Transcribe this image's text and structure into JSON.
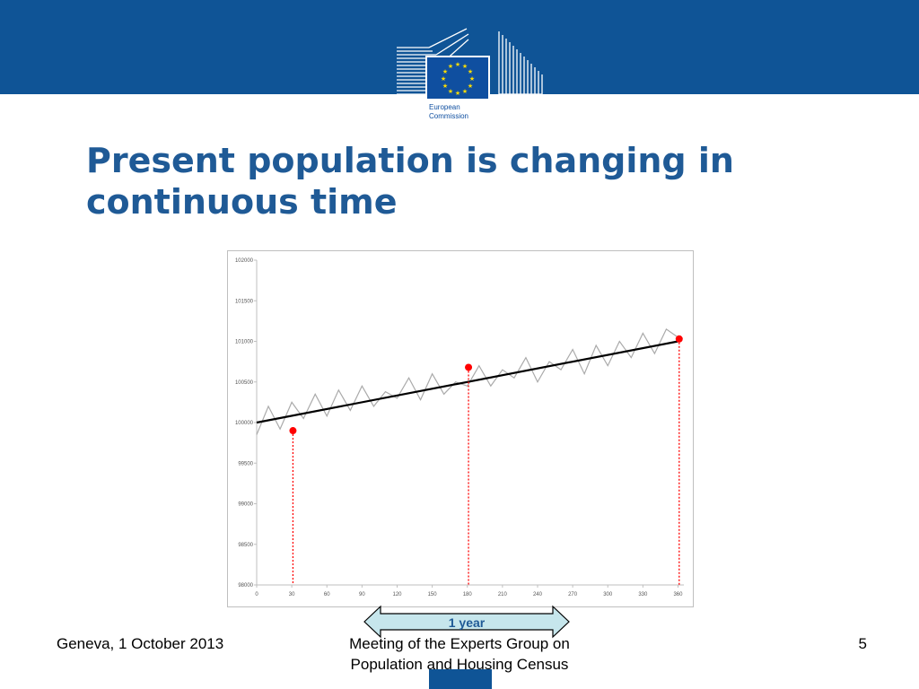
{
  "slide": {
    "title": "Present population is changing in continuous time",
    "logo_text": [
      "European",
      "Commission"
    ],
    "footer_left": "Geneva, 1 October 2013",
    "footer_center": "Meeting of the Experts Group on Population and Housing Census",
    "page_number": "5",
    "arrow_label": "1 year",
    "colors": {
      "band": "#0f5496",
      "title": "#1f5a96",
      "series": "#aaaaaa",
      "trend": "#000000",
      "marker": "#ff0000",
      "arrow_fill": "#c6e6ec"
    }
  },
  "chart_data": {
    "type": "line",
    "title": "",
    "xlabel": "",
    "ylabel": "",
    "xlim": [
      0,
      365
    ],
    "ylim": [
      98000,
      102000
    ],
    "x_ticks": [
      0,
      30,
      60,
      90,
      120,
      150,
      180,
      210,
      240,
      270,
      300,
      330,
      360
    ],
    "y_ticks": [
      98000,
      98500,
      99000,
      99500,
      100000,
      100500,
      101000,
      101500,
      102000
    ],
    "grid": false,
    "series": [
      {
        "style": "noisy",
        "x": [
          0,
          10,
          20,
          30,
          40,
          50,
          60,
          70,
          80,
          90,
          100,
          110,
          120,
          130,
          140,
          150,
          160,
          170,
          180,
          190,
          200,
          210,
          220,
          230,
          240,
          250,
          260,
          270,
          280,
          290,
          300,
          310,
          320,
          330,
          340,
          350,
          360
        ],
        "y": [
          99850,
          100200,
          99920,
          100250,
          100050,
          100350,
          100080,
          100400,
          100150,
          100450,
          100200,
          100380,
          100300,
          100550,
          100280,
          100600,
          100350,
          100500,
          100450,
          100700,
          100450,
          100650,
          100550,
          100800,
          100500,
          100750,
          100650,
          100900,
          100600,
          100950,
          100700,
          101000,
          100800,
          101100,
          100850,
          101150,
          101050
        ]
      },
      {
        "style": "trend",
        "x": [
          0,
          360
        ],
        "y": [
          100000,
          101000
        ]
      }
    ],
    "markers": [
      {
        "x": 31,
        "y": 99900
      },
      {
        "x": 181,
        "y": 100680
      },
      {
        "x": 361,
        "y": 101030
      }
    ]
  }
}
